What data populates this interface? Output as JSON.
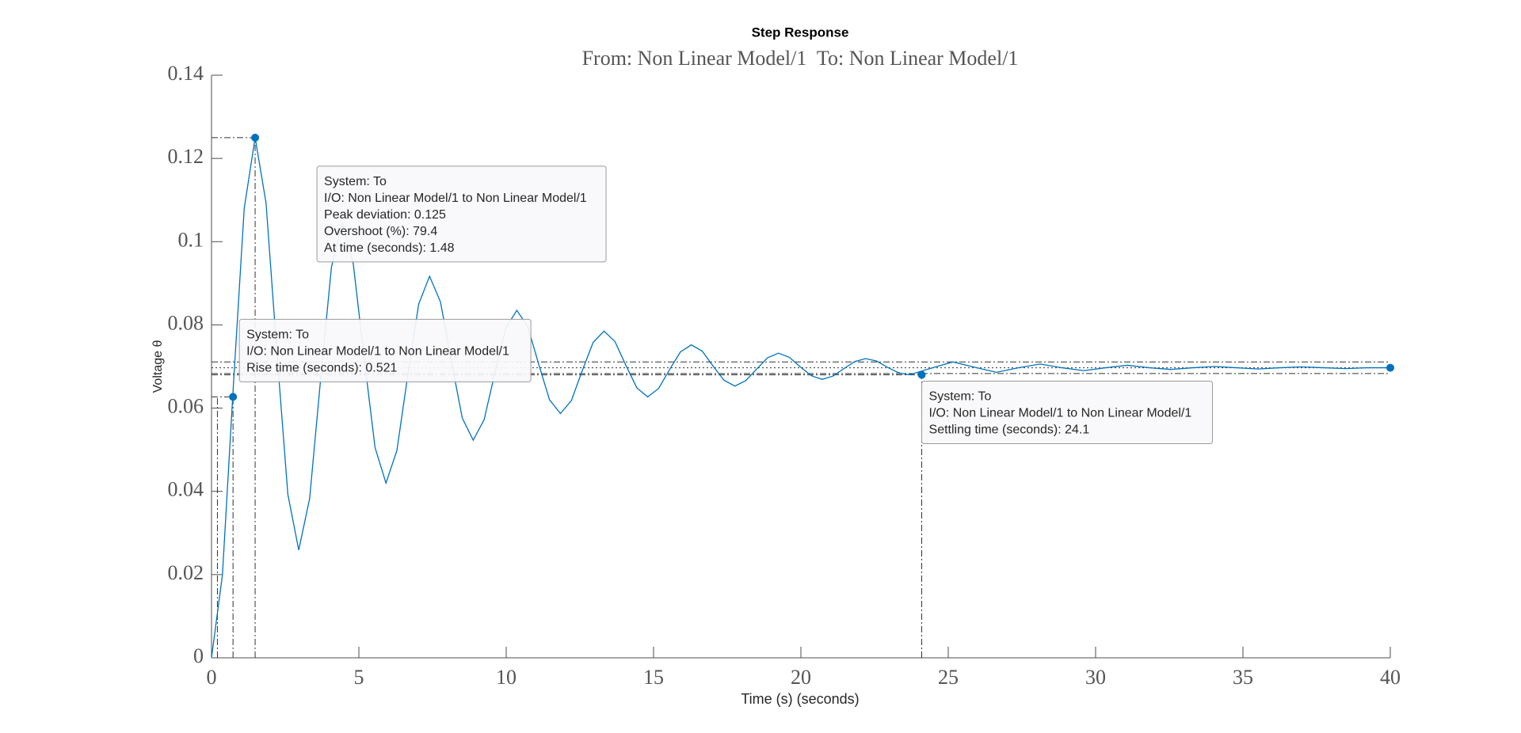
{
  "chart_data": {
    "type": "line",
    "title": "Step Response",
    "subtitle": "From: Non Linear Model/1  To: Non Linear Model/1",
    "x_label": "Time (s) (seconds)",
    "y_label": "Voltage θ",
    "xlim": [
      0,
      40
    ],
    "ylim": [
      0,
      0.14
    ],
    "xticks": [
      0,
      5,
      10,
      15,
      20,
      25,
      30,
      35,
      40
    ],
    "yticks": [
      0,
      0.02,
      0.04,
      0.06,
      0.08,
      0.1,
      0.12,
      0.14
    ],
    "x": [
      0,
      0.37,
      0.74,
      1.11,
      1.48,
      1.85,
      2.22,
      2.59,
      2.96,
      3.33,
      3.7,
      4.07,
      4.44,
      4.81,
      5.18,
      5.55,
      5.92,
      6.29,
      6.66,
      7.03,
      7.4,
      7.77,
      8.14,
      8.51,
      8.88,
      9.25,
      9.62,
      9.99,
      10.36,
      10.73,
      11.1,
      11.47,
      11.84,
      12.21,
      12.58,
      12.95,
      13.32,
      13.69,
      14.06,
      14.43,
      14.8,
      15.17,
      15.54,
      15.91,
      16.28,
      16.65,
      17.02,
      17.39,
      17.76,
      18.13,
      18.5,
      18.87,
      19.24,
      19.61,
      19.98,
      20.35,
      20.72,
      21.09,
      21.46,
      21.83,
      22.2,
      22.57,
      22.94,
      23.31,
      23.68,
      24.42,
      25.16,
      25.9,
      26.64,
      27.38,
      28.12,
      28.86,
      29.6,
      30.34,
      31.08,
      31.82,
      32.56,
      33.3,
      34.04,
      34.78,
      35.52,
      36.26,
      37,
      37.74,
      38.48,
      39.22,
      40
    ],
    "series": [
      {
        "color": "#0072bd",
        "values": [
          0,
          0.0199,
          0.0652,
          0.108,
          0.125,
          0.1093,
          0.0733,
          0.0393,
          0.0259,
          0.0383,
          0.0668,
          0.0939,
          0.1046,
          0.0947,
          0.072,
          0.0505,
          0.042,
          0.0498,
          0.0679,
          0.085,
          0.0917,
          0.0855,
          0.0712,
          0.0576,
          0.0523,
          0.0572,
          0.0686,
          0.0793,
          0.0835,
          0.0796,
          0.0706,
          0.062,
          0.0587,
          0.0618,
          0.069,
          0.0758,
          0.0785,
          0.076,
          0.0703,
          0.0649,
          0.0627,
          0.0647,
          0.0692,
          0.0735,
          0.0752,
          0.0737,
          0.0701,
          0.0667,
          0.0653,
          0.0666,
          0.0694,
          0.0721,
          0.0732,
          0.0722,
          0.0699,
          0.0678,
          0.0669,
          0.0677,
          0.0695,
          0.0712,
          0.0719,
          0.0713,
          0.0698,
          0.0685,
          0.068,
          0.0696,
          0.0711,
          0.0698,
          0.0686,
          0.0697,
          0.0706,
          0.0697,
          0.069,
          0.0697,
          0.0703,
          0.0697,
          0.0693,
          0.0697,
          0.07,
          0.0697,
          0.0694,
          0.0697,
          0.0699,
          0.0697,
          0.0695,
          0.0697,
          0.0697
        ]
      }
    ],
    "final_value": 0.0697,
    "settling_band": [
      0.0683,
      0.0711
    ],
    "rise_start_x": 0.2,
    "datatips": [
      {
        "x": 1.48,
        "y": 0.125,
        "lines": [
          "System: To",
          "I/O: Non Linear Model/1 to Non Linear Model/1",
          "Peak deviation: 0.125",
          "Overshoot (%): 79.4",
          "At time (seconds): 1.48"
        ]
      },
      {
        "x": 0.73,
        "y": 0.0627,
        "lines": [
          "System: To",
          "I/O: Non Linear Model/1 to Non Linear Model/1",
          "Rise time (seconds): 0.521"
        ]
      },
      {
        "x": 24.1,
        "y": 0.068,
        "lines": [
          "System: To",
          "I/O: Non Linear Model/1 to Non Linear Model/1",
          "Settling time (seconds): 24.1"
        ]
      }
    ]
  }
}
